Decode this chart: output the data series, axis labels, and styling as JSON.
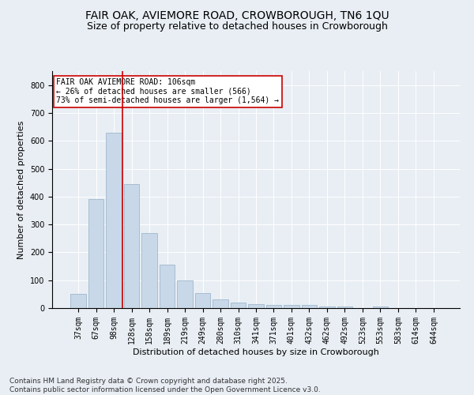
{
  "title": "FAIR OAK, AVIEMORE ROAD, CROWBOROUGH, TN6 1QU",
  "subtitle": "Size of property relative to detached houses in Crowborough",
  "xlabel": "Distribution of detached houses by size in Crowborough",
  "ylabel": "Number of detached properties",
  "categories": [
    "37sqm",
    "67sqm",
    "98sqm",
    "128sqm",
    "158sqm",
    "189sqm",
    "219sqm",
    "249sqm",
    "280sqm",
    "310sqm",
    "341sqm",
    "371sqm",
    "401sqm",
    "432sqm",
    "462sqm",
    "492sqm",
    "523sqm",
    "553sqm",
    "583sqm",
    "614sqm",
    "644sqm"
  ],
  "values": [
    50,
    390,
    630,
    445,
    270,
    155,
    100,
    55,
    30,
    20,
    15,
    10,
    10,
    10,
    5,
    5,
    0,
    5,
    0,
    0,
    0
  ],
  "bar_color": "#c8d8e8",
  "bar_edge_color": "#a0b8cc",
  "vline_x": 2.5,
  "vline_color": "#cc0000",
  "annotation_text": "FAIR OAK AVIEMORE ROAD: 106sqm\n← 26% of detached houses are smaller (566)\n73% of semi-detached houses are larger (1,564) →",
  "annotation_box_color": "#ffffff",
  "annotation_box_edge": "#cc0000",
  "ylim": [
    0,
    850
  ],
  "yticks": [
    0,
    100,
    200,
    300,
    400,
    500,
    600,
    700,
    800
  ],
  "footer_text": "Contains HM Land Registry data © Crown copyright and database right 2025.\nContains public sector information licensed under the Open Government Licence v3.0.",
  "background_color": "#e8eef4",
  "plot_bg_color": "#e8eef4",
  "title_fontsize": 10,
  "subtitle_fontsize": 9,
  "axis_label_fontsize": 8,
  "tick_fontsize": 7,
  "annotation_fontsize": 7,
  "footer_fontsize": 6.5
}
